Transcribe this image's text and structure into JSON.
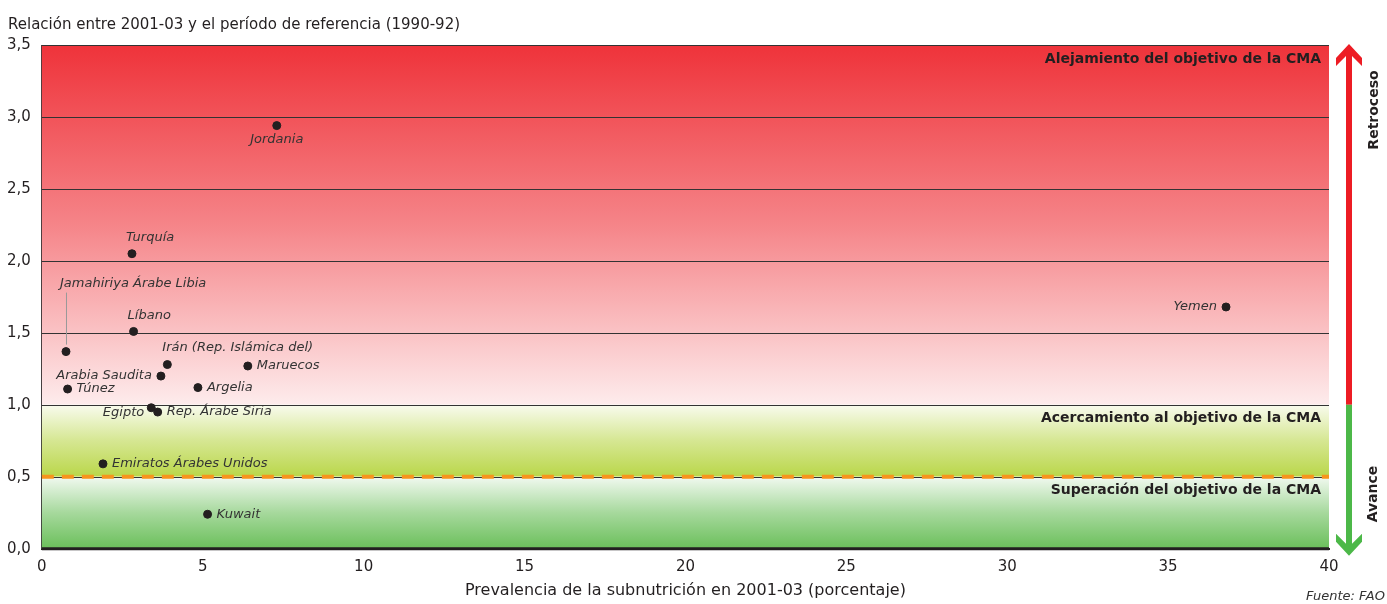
{
  "chart_data": {
    "type": "scatter",
    "ylabel": "Relación entre 2001-03 y el período de referencia (1990-92)",
    "xlabel": "Prevalencia de la subnutrición en 2001-03 (porcentaje)",
    "series": [
      {
        "color": "#231f20",
        "x": [
          7.3,
          2.8,
          0.75,
          2.85,
          3.9,
          3.7,
          6.4,
          4.85,
          0.8,
          3.4,
          3.6,
          1.9,
          5.15,
          36.8
        ],
        "values": [
          2.94,
          2.05,
          1.37,
          1.51,
          1.28,
          1.2,
          1.27,
          1.12,
          1.11,
          0.98,
          0.95,
          0.59,
          0.24,
          1.68
        ]
      }
    ],
    "marker": "circle",
    "xlim": [
      0,
      40
    ],
    "xticks": [
      0,
      5,
      10,
      15,
      20,
      25,
      30,
      35,
      40
    ],
    "ylim": [
      0,
      3.5
    ],
    "yticks": [
      {
        "value": 0,
        "label": "0,0"
      },
      {
        "value": 0.5,
        "label": "0,5"
      },
      {
        "value": 1,
        "label": "1,0"
      },
      {
        "value": 1.5,
        "label": "1,5"
      },
      {
        "value": 2,
        "label": "2,0"
      },
      {
        "value": 2.5,
        "label": "2,5"
      },
      {
        "value": 3,
        "label": "3,0"
      },
      {
        "value": 3.5,
        "label": "3,5"
      }
    ],
    "grid": "y",
    "bands": [
      {
        "axis": "y",
        "from": 1,
        "to": 3.5,
        "label": "Alejamiento del objetivo de la CMA",
        "color": "#ed1c24"
      },
      {
        "axis": "y",
        "from": 0.5,
        "to": 1,
        "label": "Acercamiento al objetivo de la CMA",
        "color": "#b2d235"
      },
      {
        "axis": "y",
        "from": 0,
        "to": 0.5,
        "label": "Superación del objetivo de la CMA",
        "color": "#5ab848"
      }
    ],
    "ref_lines": [
      {
        "axis": "y",
        "value": 0.5,
        "color": "#f7941d",
        "line_style": "dashed"
      }
    ],
    "annotations": [
      {
        "text": "Jordania",
        "x": 7.3,
        "y": 2.94
      },
      {
        "text": "Turquía",
        "x": 2.8,
        "y": 2.05
      },
      {
        "text": "Jamahiriya Árabe Libia",
        "x": 0.75,
        "y": 1.37
      },
      {
        "text": "Líbano",
        "x": 2.85,
        "y": 1.51
      },
      {
        "text": "Irán (Rep. Islámica del)",
        "x": 3.9,
        "y": 1.28
      },
      {
        "text": "Arabia Saudita",
        "x": 3.7,
        "y": 1.2
      },
      {
        "text": "Maruecos",
        "x": 6.4,
        "y": 1.27
      },
      {
        "text": "Argelia",
        "x": 4.85,
        "y": 1.12
      },
      {
        "text": "Túnez",
        "x": 0.8,
        "y": 1.11
      },
      {
        "text": "Egipto",
        "x": 3.4,
        "y": 0.98
      },
      {
        "text": "Rep. Árabe Siria",
        "x": 3.6,
        "y": 0.95
      },
      {
        "text": "Emiratos Árabes Unidos",
        "x": 1.9,
        "y": 0.59
      },
      {
        "text": "Kuwait",
        "x": 5.15,
        "y": 0.24
      },
      {
        "text": "Yemen",
        "x": 36.8,
        "y": 1.68
      },
      "Retroceso",
      "Avance",
      "Fuente: FAO"
    ]
  }
}
